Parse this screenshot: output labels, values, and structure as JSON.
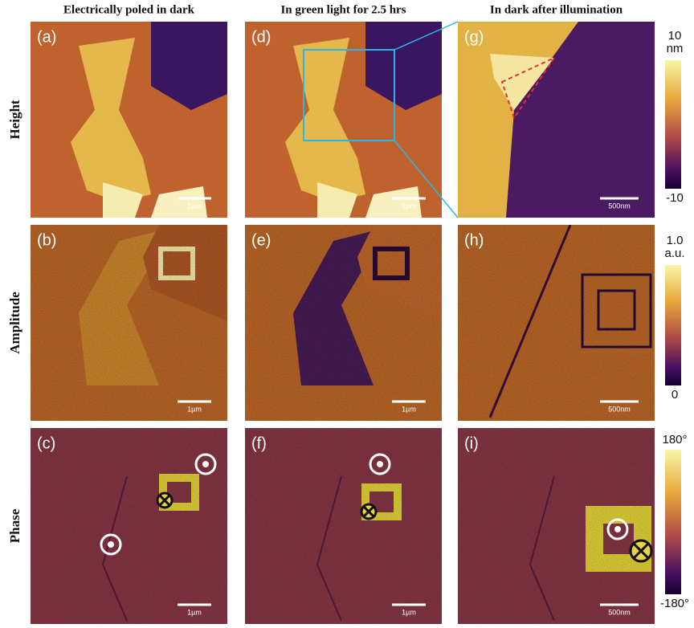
{
  "columns": [
    "Electrically poled in dark",
    "In green light for 2.5 hrs",
    "In dark after illumination"
  ],
  "rows": [
    "Height",
    "Amplitude",
    "Phase"
  ],
  "panels": [
    {
      "label": "(a)",
      "scale_bar": "1µm"
    },
    {
      "label": "(d)",
      "scale_bar": "1µm"
    },
    {
      "label": "(g)",
      "scale_bar": "500nm"
    },
    {
      "label": "(b)",
      "scale_bar": "1µm"
    },
    {
      "label": "(e)",
      "scale_bar": "1µm"
    },
    {
      "label": "(h)",
      "scale_bar": "500nm"
    },
    {
      "label": "(c)",
      "scale_bar": "1µm"
    },
    {
      "label": "(f)",
      "scale_bar": "1µm"
    },
    {
      "label": "(i)",
      "scale_bar": "500nm"
    }
  ],
  "colorbars": [
    {
      "max": "10",
      "unit": "nm",
      "min": "-10"
    },
    {
      "max": "1.0",
      "unit": "a.u.",
      "min": "0"
    },
    {
      "max": "180°",
      "min": "-180°"
    }
  ]
}
